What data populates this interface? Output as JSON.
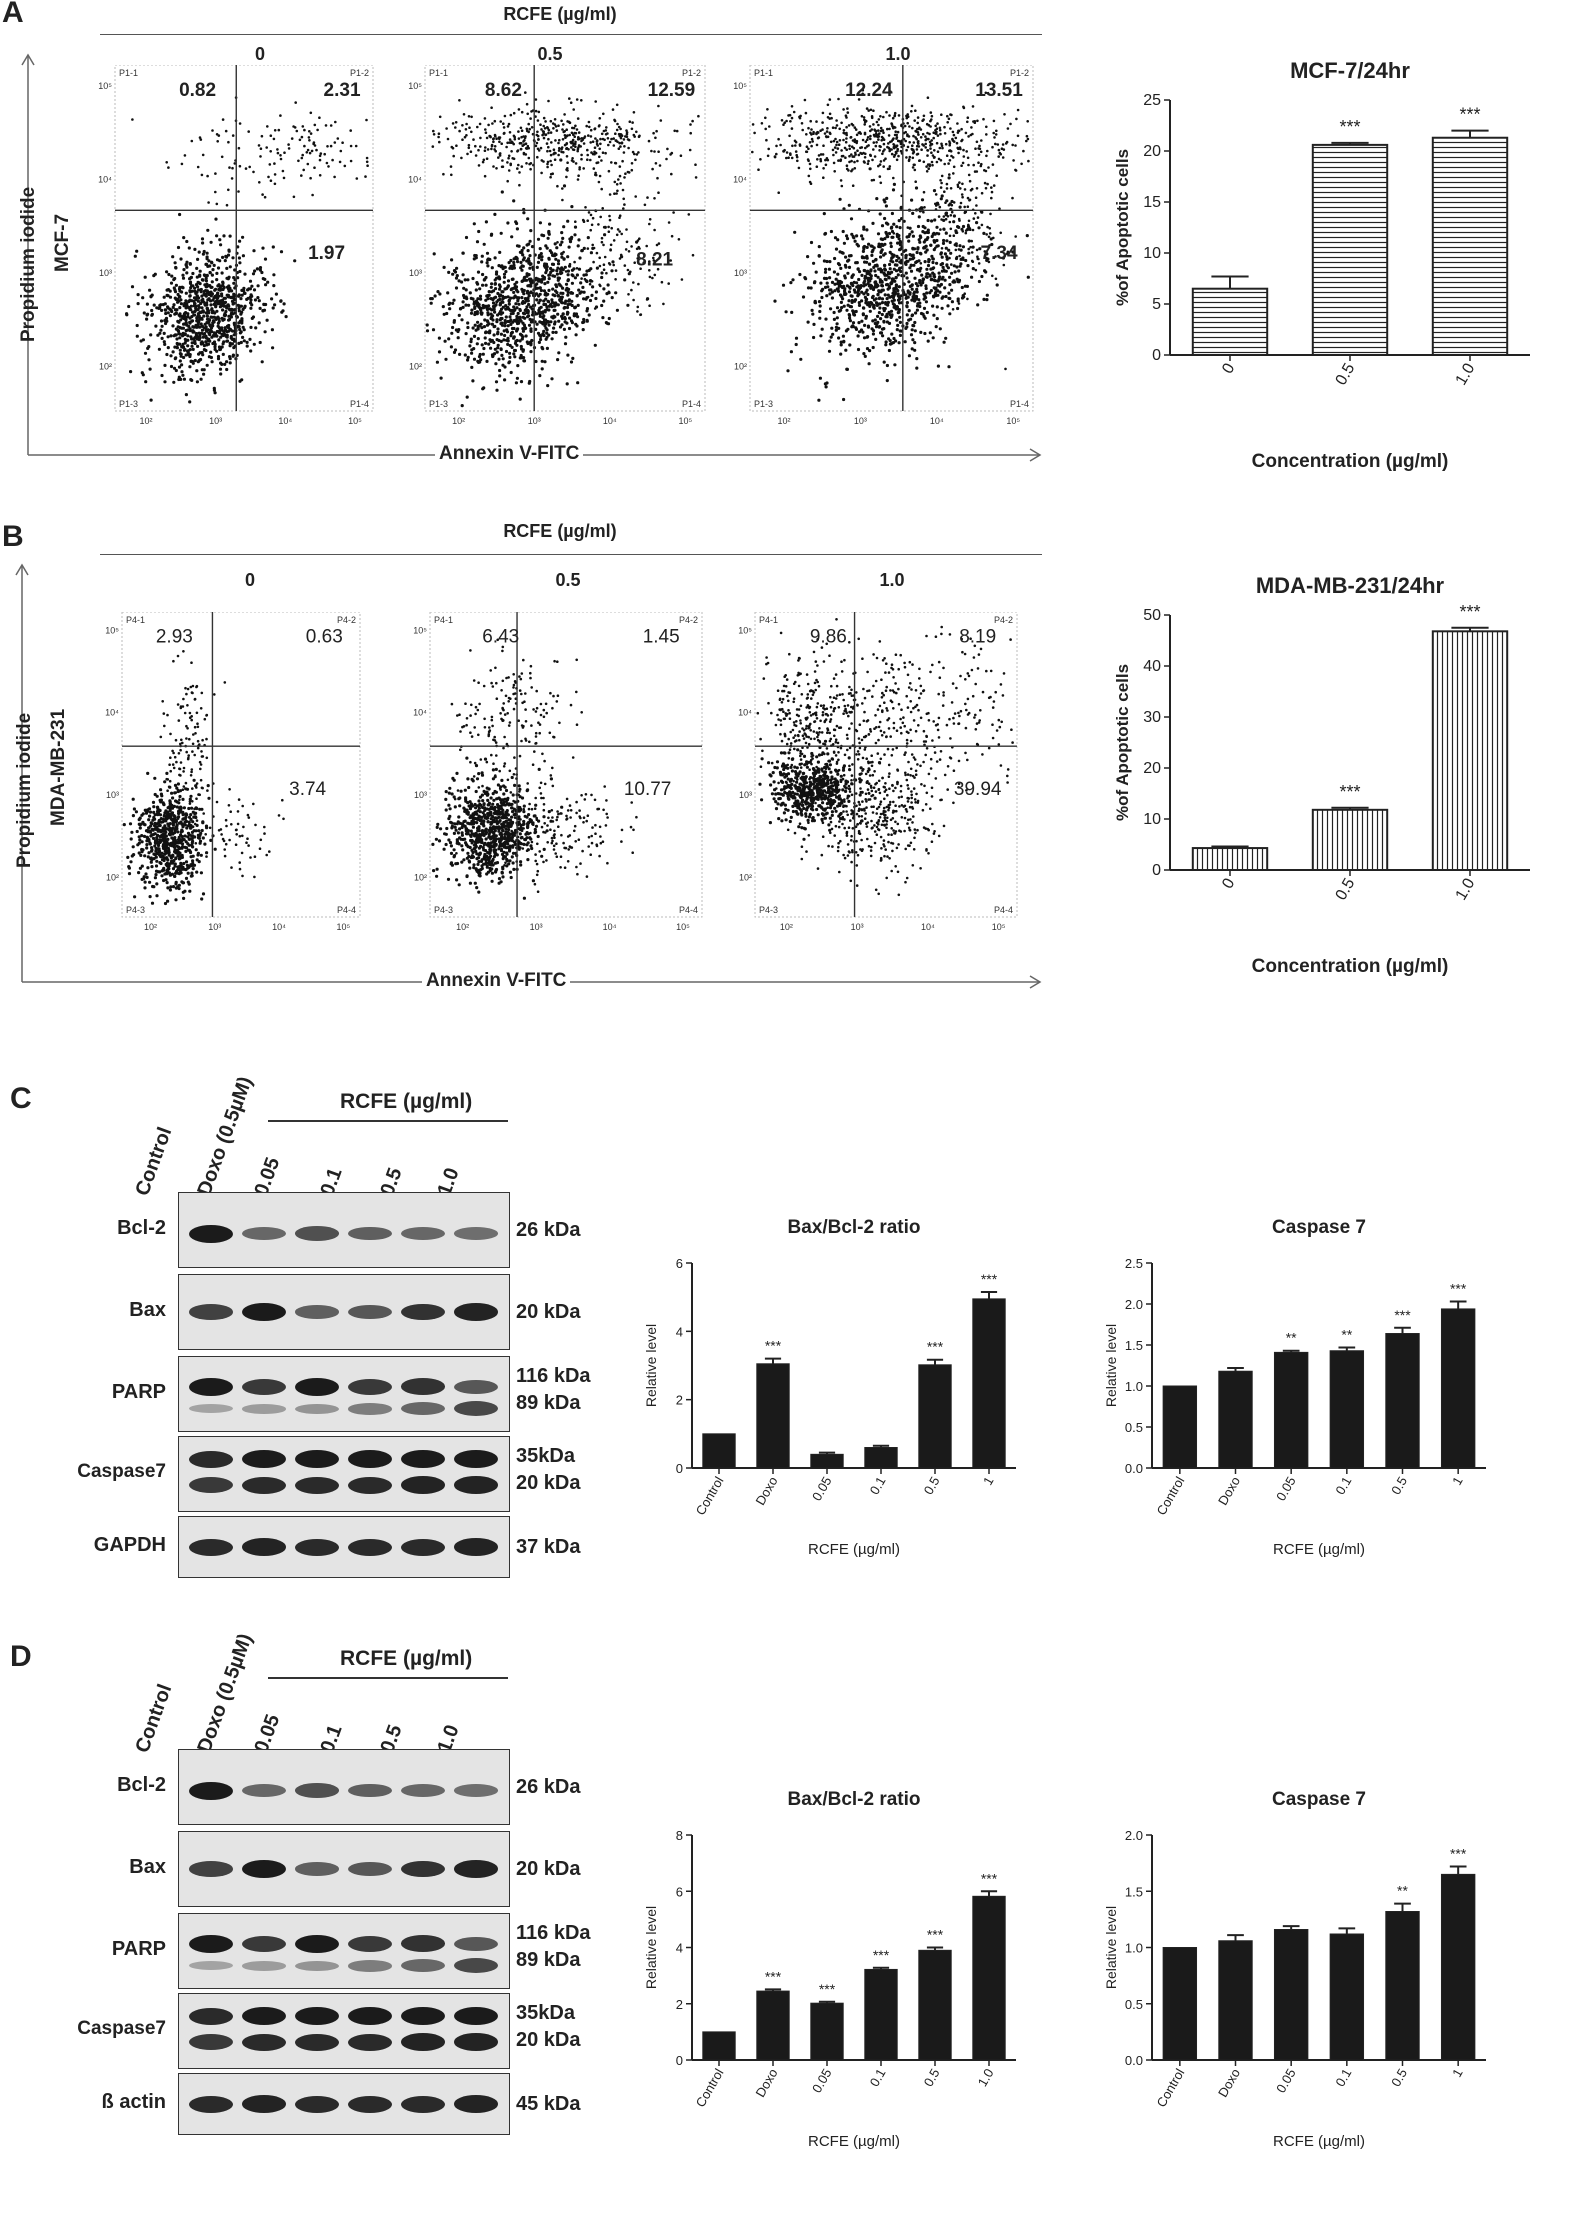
{
  "panel_letters": [
    "A",
    "B",
    "C",
    "D"
  ],
  "flow": {
    "rcfe_header": "RCFE (µg/ml)",
    "conc_labels": [
      "0",
      "0.5",
      "1.0"
    ],
    "pi_label": "Propidium iodide",
    "annexin_label": "Annexin V-FITC",
    "axis_ticks": [
      "10²",
      "10³",
      "10⁴",
      "10⁵"
    ],
    "gate_labels_A": [
      "P1-1",
      "P1-2",
      "P1-3",
      "P1-4"
    ],
    "gate_labels_B": [
      "P4-1",
      "P4-2",
      "P4-3",
      "P4-4"
    ],
    "A": {
      "cell_line": "MCF-7",
      "plots": [
        {
          "q1": "0.82",
          "q2": "2.31",
          "q4": "1.97"
        },
        {
          "q1": "8.62",
          "q2": "12.59",
          "q4": "8.21"
        },
        {
          "q1": "12.24",
          "q2": "13.51",
          "q4": "7.34"
        }
      ]
    },
    "B": {
      "cell_line": "MDA-MB-231",
      "plots": [
        {
          "q1": "2.93",
          "q2": "0.63",
          "q4": "3.74"
        },
        {
          "q1": "6.43",
          "q2": "1.45",
          "q4": "10.77"
        },
        {
          "q1": "9.86",
          "q2": "8.19",
          "q4": "39.94"
        }
      ]
    }
  },
  "blots": {
    "C": {
      "lanes": [
        "Control",
        "Doxo (0.5µM)",
        "0.05",
        "0.1",
        "0.5",
        "1.0"
      ],
      "rcfe_header": "RCFE (µg/ml)",
      "rows": [
        {
          "protein": "Bcl-2",
          "kda": [
            "26 kDa"
          ]
        },
        {
          "protein": "Bax",
          "kda": [
            "20 kDa"
          ]
        },
        {
          "protein": "PARP",
          "kda": [
            "116 kDa",
            "89 kDa"
          ]
        },
        {
          "protein": "Caspase7",
          "kda": [
            "35kDa",
            "20 kDa"
          ]
        },
        {
          "protein": "GAPDH",
          "kda": [
            "37 kDa"
          ]
        }
      ]
    },
    "D": {
      "lanes": [
        "Control",
        "Doxo (0.5µM)",
        "0.05",
        "0.1",
        "0.5",
        "1.0"
      ],
      "rcfe_header": "RCFE (µg/ml)",
      "rows": [
        {
          "protein": "Bcl-2",
          "kda": [
            "26 kDa"
          ]
        },
        {
          "protein": "Bax",
          "kda": [
            "20 kDa"
          ]
        },
        {
          "protein": "PARP",
          "kda": [
            "116 kDa",
            "89 kDa"
          ]
        },
        {
          "protein": "Caspase7",
          "kda": [
            "35kDa",
            "20 kDa"
          ]
        },
        {
          "protein": "ß actin",
          "kda": [
            "45 kDa"
          ]
        }
      ]
    }
  },
  "chart_data": [
    {
      "id": "A-bar",
      "type": "bar",
      "title": "MCF-7/24hr",
      "xlabel": "Concentration (µg/ml)",
      "ylabel": "%of Apoptotic cells",
      "categories": [
        "0",
        "0.5",
        "1.0"
      ],
      "values": [
        6.5,
        20.6,
        21.3
      ],
      "errors": [
        1.2,
        0.2,
        0.7
      ],
      "sig": [
        "",
        "***",
        "***"
      ],
      "ylim": [
        0,
        25
      ],
      "yticks": [
        "0",
        "5",
        "10",
        "15",
        "20",
        "25"
      ],
      "fill": "hstripe",
      "xrot": true
    },
    {
      "id": "B-bar",
      "type": "bar",
      "title": "MDA-MB-231/24hr",
      "xlabel": "Concentration (µg/ml)",
      "ylabel": "%of Apoptotic cells",
      "categories": [
        "0",
        "0.5",
        "1.0"
      ],
      "values": [
        4.3,
        11.8,
        46.8
      ],
      "errors": [
        0.3,
        0.4,
        0.7
      ],
      "sig": [
        "",
        "***",
        "***"
      ],
      "ylim": [
        0,
        50
      ],
      "yticks": [
        "0",
        "10",
        "20",
        "30",
        "40",
        "50"
      ],
      "fill": "vstripe",
      "xrot": true
    },
    {
      "id": "C-bax",
      "type": "bar",
      "title": "Bax/Bcl-2 ratio",
      "xlabel": "RCFE (µg/ml)",
      "ylabel": "Relative level",
      "categories": [
        "Control",
        "Doxo",
        "0.05",
        "0.1",
        "0.5",
        "1"
      ],
      "values": [
        1.0,
        3.05,
        0.4,
        0.6,
        3.02,
        4.95
      ],
      "errors": [
        0,
        0.15,
        0.05,
        0.05,
        0.15,
        0.2
      ],
      "sig": [
        "",
        "***",
        "",
        "",
        "***",
        "***"
      ],
      "ylim": [
        0,
        6
      ],
      "yticks": [
        "0",
        "2",
        "4",
        "6"
      ],
      "fill": "solid",
      "xrot": true
    },
    {
      "id": "C-casp",
      "type": "bar",
      "title": "Caspase 7",
      "xlabel": "RCFE (µg/ml)",
      "ylabel": "Relative level",
      "categories": [
        "Control",
        "Doxo",
        "0.05",
        "0.1",
        "0.5",
        "1"
      ],
      "values": [
        1.0,
        1.18,
        1.41,
        1.43,
        1.64,
        1.94
      ],
      "errors": [
        0,
        0.04,
        0.02,
        0.04,
        0.07,
        0.09
      ],
      "sig": [
        "",
        "",
        "**",
        "**",
        "***",
        "***"
      ],
      "ylim": [
        0,
        2.5
      ],
      "yticks": [
        "0.0",
        "0.5",
        "1.0",
        "1.5",
        "2.0",
        "2.5"
      ],
      "fill": "solid",
      "xrot": true
    },
    {
      "id": "D-bax",
      "type": "bar",
      "title": "Bax/Bcl-2 ratio",
      "xlabel": "RCFE (µg/ml)",
      "ylabel": "Relative level",
      "categories": [
        "Control",
        "Doxo",
        "0.05",
        "0.1",
        "0.5",
        "1.0"
      ],
      "values": [
        1.0,
        2.45,
        2.02,
        3.22,
        3.9,
        5.82
      ],
      "errors": [
        0,
        0.06,
        0.05,
        0.06,
        0.1,
        0.18
      ],
      "sig": [
        "",
        "***",
        "***",
        "***",
        "***",
        "***"
      ],
      "ylim": [
        0,
        8
      ],
      "yticks": [
        "0",
        "2",
        "4",
        "6",
        "8"
      ],
      "fill": "solid",
      "xrot": true
    },
    {
      "id": "D-casp",
      "type": "bar",
      "title": "Caspase 7",
      "xlabel": "RCFE (µg/ml)",
      "ylabel": "Relative level",
      "categories": [
        "Control",
        "Doxo",
        "0.05",
        "0.1",
        "0.5",
        "1"
      ],
      "values": [
        1.0,
        1.06,
        1.16,
        1.12,
        1.32,
        1.65
      ],
      "errors": [
        0,
        0.05,
        0.03,
        0.05,
        0.07,
        0.07
      ],
      "sig": [
        "",
        "",
        "",
        "",
        "**",
        "***"
      ],
      "ylim": [
        0,
        2.0
      ],
      "yticks": [
        "0.0",
        "0.5",
        "1.0",
        "1.5",
        "2.0"
      ],
      "fill": "solid",
      "xrot": true
    }
  ]
}
